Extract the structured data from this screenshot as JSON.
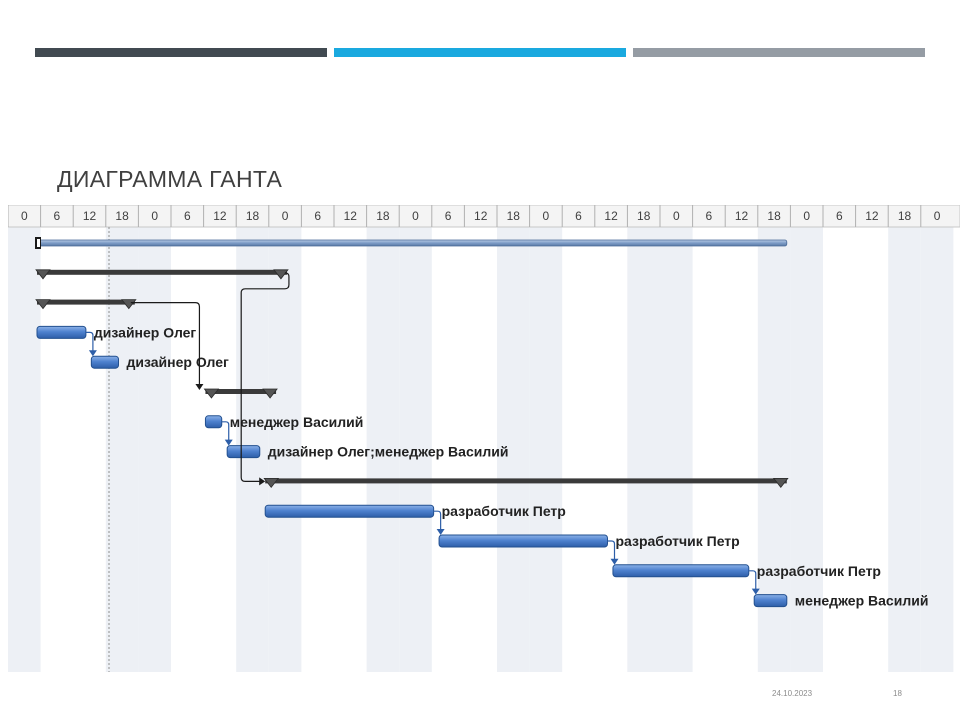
{
  "header_bars": {
    "colors": [
      "#414a51",
      "#1aa9df",
      "#959ca4"
    ]
  },
  "title": "ДИАГРАММА ГАНТА",
  "timescale": {
    "ticks": [
      "0",
      "6",
      "12",
      "18",
      "0",
      "6",
      "12",
      "18",
      "0",
      "6",
      "12",
      "18",
      "0",
      "6",
      "12",
      "18",
      "0",
      "6",
      "12",
      "18",
      "0",
      "6",
      "12",
      "18",
      "0",
      "6",
      "12",
      "18",
      "0"
    ]
  },
  "tasks": [
    {
      "type": "project",
      "start": 0,
      "end": 138
    },
    {
      "type": "summary",
      "start": 0,
      "end": 46
    },
    {
      "type": "summary",
      "start": 0,
      "end": 18
    },
    {
      "type": "task",
      "start": 0,
      "end": 9,
      "resource": "дизайнер Олег"
    },
    {
      "type": "task",
      "start": 10,
      "end": 15,
      "resource": "дизайнер Олег"
    },
    {
      "type": "summary",
      "start": 31,
      "end": 44
    },
    {
      "type": "task",
      "start": 31,
      "end": 34,
      "resource": "менеджер Василий"
    },
    {
      "type": "task",
      "start": 35,
      "end": 41,
      "resource": "дизайнер Олег;менеджер Василий"
    },
    {
      "type": "summary",
      "start": 42,
      "end": 138
    },
    {
      "type": "task",
      "start": 42,
      "end": 73,
      "resource": "разработчик Петр"
    },
    {
      "type": "task",
      "start": 74,
      "end": 105,
      "resource": "разработчик Петр"
    },
    {
      "type": "task",
      "start": 106,
      "end": 131,
      "resource": "разработчик Петр"
    },
    {
      "type": "task",
      "start": 132,
      "end": 138,
      "resource": "менеджер Василий"
    }
  ],
  "footer": {
    "date": "24.10.2023",
    "page": "18"
  }
}
